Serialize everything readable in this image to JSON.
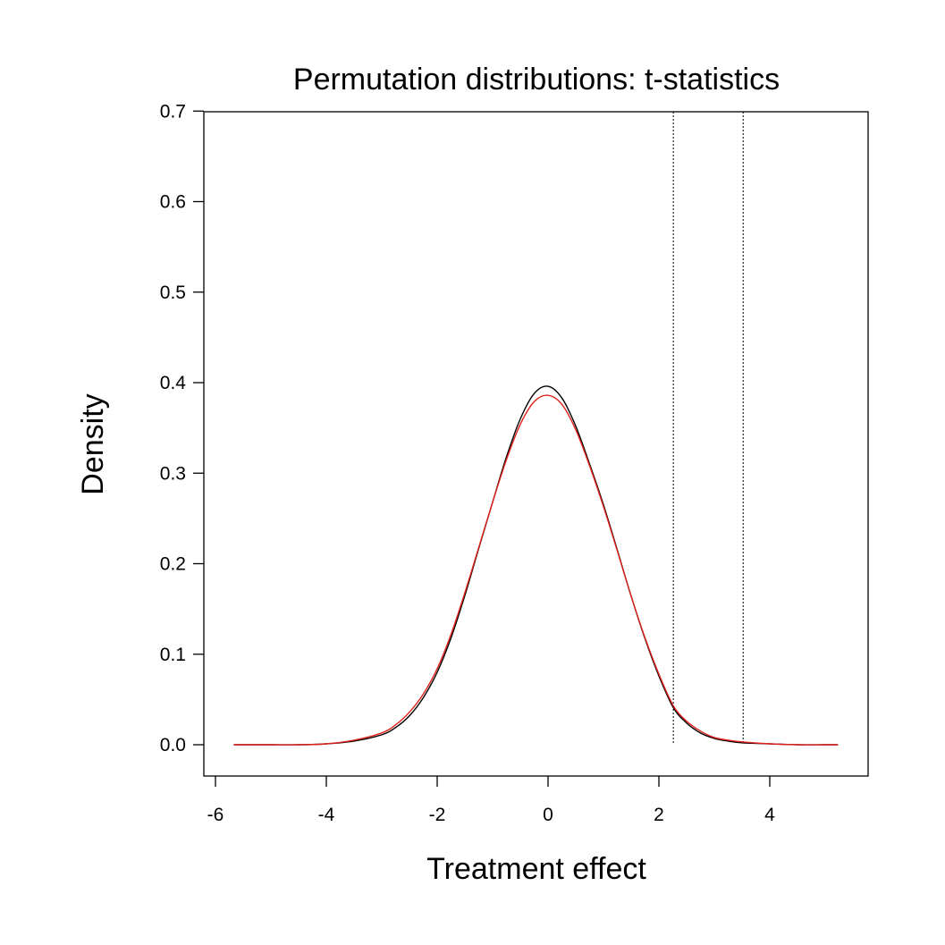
{
  "chart_data": {
    "type": "line",
    "title": "Permutation distributions: t-statistics",
    "xlabel": "Treatment effect",
    "ylabel": "Density",
    "xlim": [
      -6.2,
      5.75
    ],
    "ylim": [
      -0.035,
      0.7
    ],
    "x_ticks": [
      -6,
      -4,
      -2,
      0,
      2,
      4
    ],
    "x_tick_labels": [
      "-6",
      "-4",
      "-2",
      "0",
      "2",
      "4"
    ],
    "y_ticks": [
      0.0,
      0.1,
      0.2,
      0.3,
      0.4,
      0.5,
      0.6,
      0.7
    ],
    "y_tick_labels": [
      "0.0",
      "0.1",
      "0.2",
      "0.3",
      "0.4",
      "0.5",
      "0.6",
      "0.7"
    ],
    "grid": false,
    "legend": "none",
    "vlines": [
      {
        "x": 2.26,
        "style": "dotted",
        "color": "#000000"
      },
      {
        "x": 3.52,
        "style": "dotted",
        "color": "#000000"
      }
    ],
    "series": [
      {
        "name": "permutation density (black)",
        "color": "#000000",
        "x": [
          -5.67,
          -5.0,
          -4.5,
          -4.0,
          -3.5,
          -3.0,
          -2.75,
          -2.5,
          -2.25,
          -2.0,
          -1.75,
          -1.5,
          -1.25,
          -1.0,
          -0.75,
          -0.5,
          -0.25,
          0.0,
          0.25,
          0.5,
          0.75,
          1.0,
          1.25,
          1.5,
          1.75,
          2.0,
          2.26,
          2.5,
          2.75,
          3.0,
          3.25,
          3.52,
          4.0,
          4.5,
          5.0,
          5.23
        ],
        "values": [
          0.0,
          0.0,
          0.0,
          0.001,
          0.004,
          0.011,
          0.019,
          0.032,
          0.052,
          0.08,
          0.118,
          0.165,
          0.217,
          0.268,
          0.318,
          0.36,
          0.388,
          0.396,
          0.383,
          0.352,
          0.31,
          0.265,
          0.215,
          0.164,
          0.117,
          0.076,
          0.041,
          0.024,
          0.013,
          0.007,
          0.004,
          0.002,
          0.001,
          0.0,
          0.0,
          0.0
        ]
      },
      {
        "name": "reference density (red)",
        "color": "#e0201b",
        "x": [
          -5.67,
          -5.0,
          -4.5,
          -4.0,
          -3.5,
          -3.0,
          -2.75,
          -2.5,
          -2.25,
          -2.0,
          -1.75,
          -1.5,
          -1.25,
          -1.0,
          -0.75,
          -0.5,
          -0.25,
          0.0,
          0.25,
          0.5,
          0.75,
          1.0,
          1.25,
          1.5,
          1.75,
          2.0,
          2.26,
          2.5,
          2.75,
          3.0,
          3.25,
          3.52,
          4.0,
          4.5,
          5.0,
          5.23
        ],
        "values": [
          0.0,
          0.0,
          0.0,
          0.001,
          0.005,
          0.013,
          0.022,
          0.036,
          0.056,
          0.084,
          0.122,
          0.168,
          0.218,
          0.268,
          0.315,
          0.354,
          0.379,
          0.386,
          0.376,
          0.348,
          0.308,
          0.263,
          0.214,
          0.164,
          0.118,
          0.078,
          0.043,
          0.026,
          0.015,
          0.008,
          0.005,
          0.003,
          0.001,
          0.0,
          0.0,
          0.0
        ]
      }
    ]
  }
}
